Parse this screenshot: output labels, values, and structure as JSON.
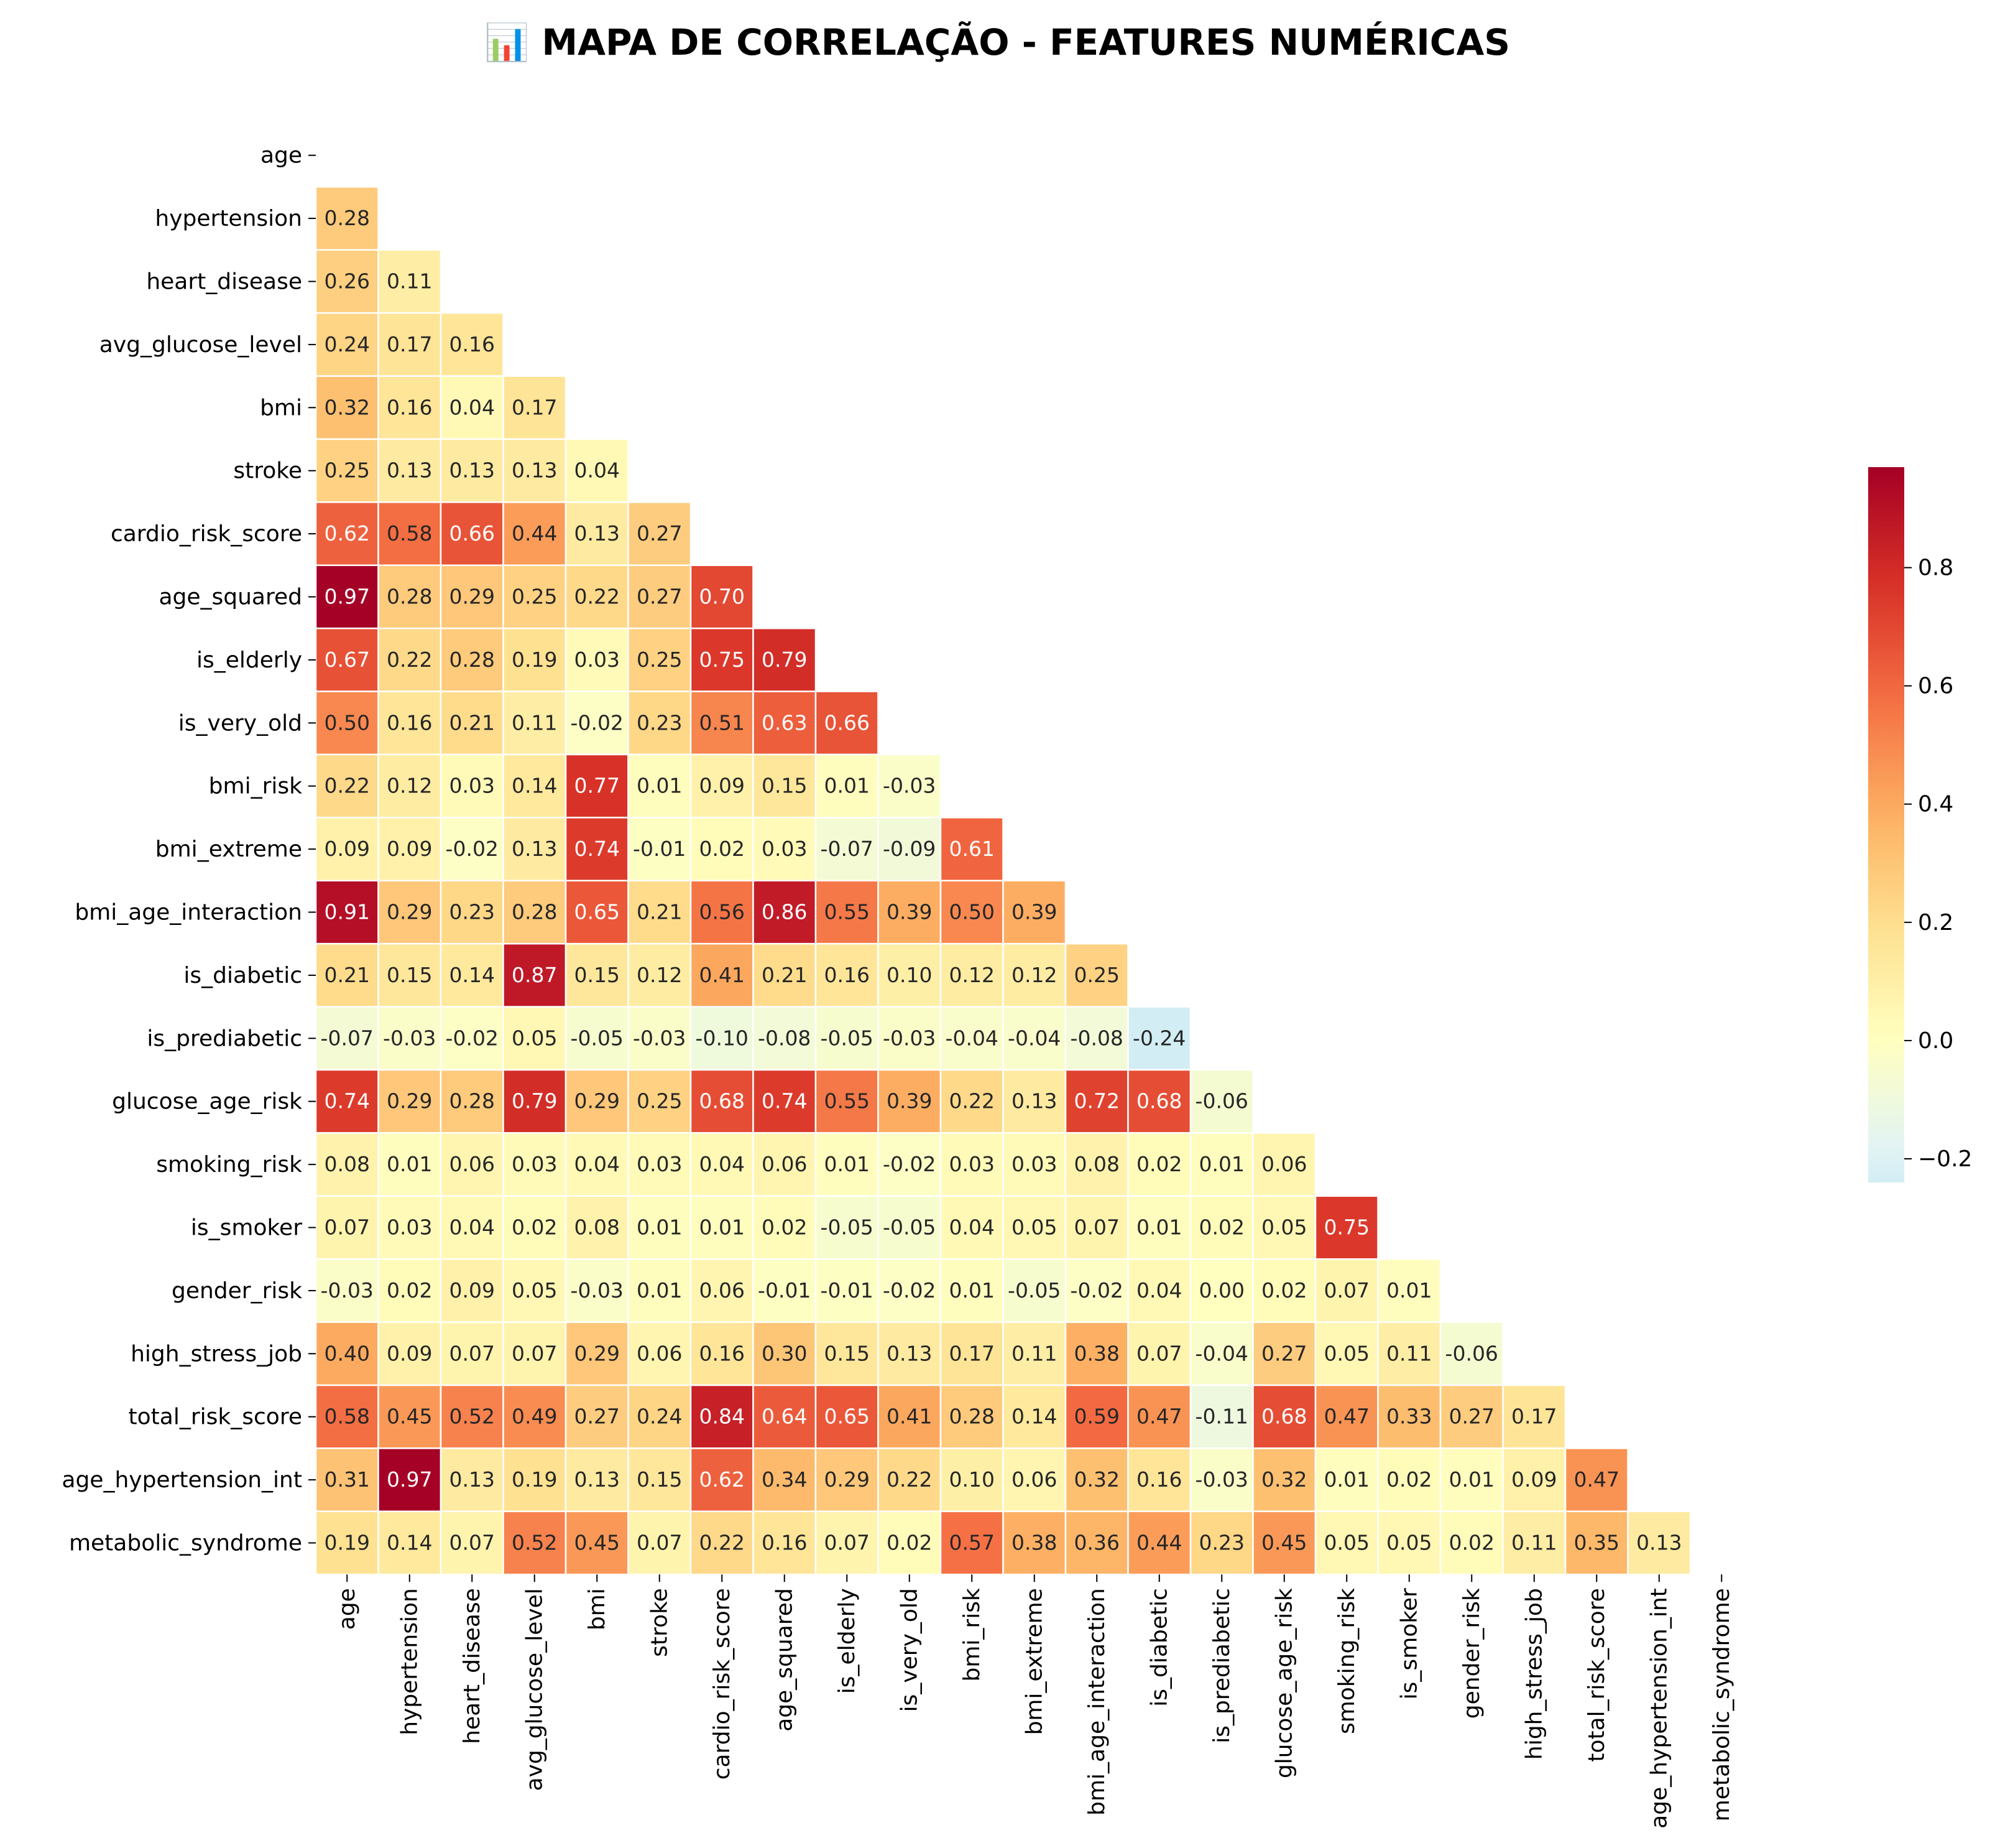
{
  "chart_data": {
    "type": "heatmap",
    "title": "📊 MAPA DE CORRELAÇÃO - FEATURES NUMÉRICAS",
    "xlabel": "",
    "ylabel": "",
    "mask": "upper-triangle-including-diagonal",
    "colormap": "RdYlBu_r",
    "vmin": -0.24,
    "vmax": 0.97,
    "center": 0,
    "labels": [
      "age",
      "hypertension",
      "heart_disease",
      "avg_glucose_level",
      "bmi",
      "stroke",
      "cardio_risk_score",
      "age_squared",
      "is_elderly",
      "is_very_old",
      "bmi_risk",
      "bmi_extreme",
      "bmi_age_interaction",
      "is_diabetic",
      "is_prediabetic",
      "glucose_age_risk",
      "smoking_risk",
      "is_smoker",
      "gender_risk",
      "high_stress_job",
      "total_risk_score",
      "age_hypertension_int",
      "metabolic_syndrome"
    ],
    "rows": [
      [],
      [
        0.28
      ],
      [
        0.26,
        0.11
      ],
      [
        0.24,
        0.17,
        0.16
      ],
      [
        0.32,
        0.16,
        0.04,
        0.17
      ],
      [
        0.25,
        0.13,
        0.13,
        0.13,
        0.04
      ],
      [
        0.62,
        0.58,
        0.66,
        0.44,
        0.13,
        0.27
      ],
      [
        0.97,
        0.28,
        0.29,
        0.25,
        0.22,
        0.27,
        0.7
      ],
      [
        0.67,
        0.22,
        0.28,
        0.19,
        0.03,
        0.25,
        0.75,
        0.79
      ],
      [
        0.5,
        0.16,
        0.21,
        0.11,
        -0.02,
        0.23,
        0.51,
        0.63,
        0.66
      ],
      [
        0.22,
        0.12,
        0.03,
        0.14,
        0.77,
        0.01,
        0.09,
        0.15,
        0.01,
        -0.03
      ],
      [
        0.09,
        0.09,
        -0.02,
        0.13,
        0.74,
        -0.01,
        0.02,
        0.03,
        -0.07,
        -0.09,
        0.61
      ],
      [
        0.91,
        0.29,
        0.23,
        0.28,
        0.65,
        0.21,
        0.56,
        0.86,
        0.55,
        0.39,
        0.5,
        0.39
      ],
      [
        0.21,
        0.15,
        0.14,
        0.87,
        0.15,
        0.12,
        0.41,
        0.21,
        0.16,
        0.1,
        0.12,
        0.12,
        0.25
      ],
      [
        -0.07,
        -0.03,
        -0.02,
        0.05,
        -0.05,
        -0.03,
        -0.1,
        -0.08,
        -0.05,
        -0.03,
        -0.04,
        -0.04,
        -0.08,
        -0.24
      ],
      [
        0.74,
        0.29,
        0.28,
        0.79,
        0.29,
        0.25,
        0.68,
        0.74,
        0.55,
        0.39,
        0.22,
        0.13,
        0.72,
        0.68,
        -0.06
      ],
      [
        0.08,
        0.01,
        0.06,
        0.03,
        0.04,
        0.03,
        0.04,
        0.06,
        0.01,
        -0.02,
        0.03,
        0.03,
        0.08,
        0.02,
        0.01,
        0.06
      ],
      [
        0.07,
        0.03,
        0.04,
        0.02,
        0.08,
        0.01,
        0.01,
        0.02,
        -0.05,
        -0.05,
        0.04,
        0.05,
        0.07,
        0.01,
        0.02,
        0.05,
        0.75
      ],
      [
        -0.03,
        0.02,
        0.09,
        0.05,
        -0.03,
        0.01,
        0.06,
        -0.01,
        -0.01,
        -0.02,
        0.01,
        -0.05,
        -0.02,
        0.04,
        0.0,
        0.02,
        0.07,
        0.01
      ],
      [
        0.4,
        0.09,
        0.07,
        0.07,
        0.29,
        0.06,
        0.16,
        0.3,
        0.15,
        0.13,
        0.17,
        0.11,
        0.38,
        0.07,
        -0.04,
        0.27,
        0.05,
        0.11,
        -0.06
      ],
      [
        0.58,
        0.45,
        0.52,
        0.49,
        0.27,
        0.24,
        0.84,
        0.64,
        0.65,
        0.41,
        0.28,
        0.14,
        0.59,
        0.47,
        -0.11,
        0.68,
        0.47,
        0.33,
        0.27,
        0.17
      ],
      [
        0.31,
        0.97,
        0.13,
        0.19,
        0.13,
        0.15,
        0.62,
        0.34,
        0.29,
        0.22,
        0.1,
        0.06,
        0.32,
        0.16,
        -0.03,
        0.32,
        0.01,
        0.02,
        0.01,
        0.09,
        0.47
      ],
      [
        0.19,
        0.14,
        0.07,
        0.52,
        0.45,
        0.07,
        0.22,
        0.16,
        0.07,
        0.02,
        0.57,
        0.38,
        0.36,
        0.44,
        0.23,
        0.45,
        0.05,
        0.05,
        0.02,
        0.11,
        0.35,
        0.13
      ]
    ],
    "colorbar": {
      "ticks": [
        -0.2,
        0.0,
        0.2,
        0.4,
        0.6,
        0.8
      ],
      "tick_labels": [
        "−0.2",
        "0.0",
        "0.2",
        "0.4",
        "0.6",
        "0.8"
      ]
    }
  }
}
